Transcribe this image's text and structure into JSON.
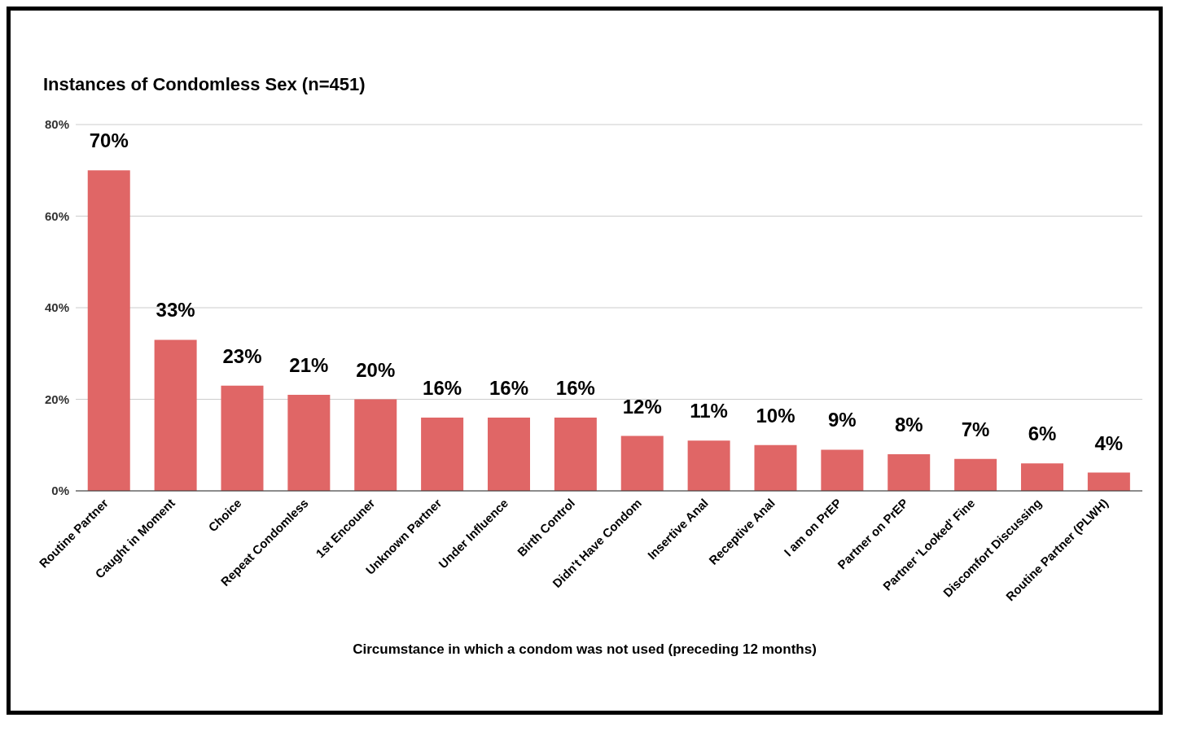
{
  "chart_data": {
    "type": "bar",
    "title": "Instances of Condomless Sex (n=451)",
    "xlabel": "Circumstance in which a condom was not used (preceding 12 months)",
    "categories": [
      "Routine Partner",
      "Caught in Moment",
      "Choice",
      "Repeat Condomless",
      "1st Encouner",
      "Unknown Partner",
      "Under Influence",
      "Birth Control",
      "Didn't Have Condom",
      "Insertive Anal",
      "Receptive Anal",
      "I am on PrEP",
      "Partner on PrEP",
      "Partner 'Looked' Fine",
      "Discomfort Discussing",
      "Routine Partner (PLWH)"
    ],
    "values": [
      70,
      33,
      23,
      21,
      20,
      16,
      16,
      16,
      12,
      11,
      10,
      9,
      8,
      7,
      6,
      4
    ],
    "value_labels": [
      "70%",
      "33%",
      "23%",
      "21%",
      "20%",
      "16%",
      "16%",
      "16%",
      "12%",
      "11%",
      "10%",
      "9%",
      "8%",
      "7%",
      "6%",
      "4%"
    ],
    "color": "#e06666",
    "ylim": [
      0,
      80
    ],
    "yticks": [
      {
        "value": 0,
        "label": "0%"
      },
      {
        "value": 20,
        "label": "20%"
      },
      {
        "value": 40,
        "label": "40%"
      },
      {
        "value": 60,
        "label": "60%"
      },
      {
        "value": 80,
        "label": "80%"
      }
    ],
    "grid": "y"
  }
}
